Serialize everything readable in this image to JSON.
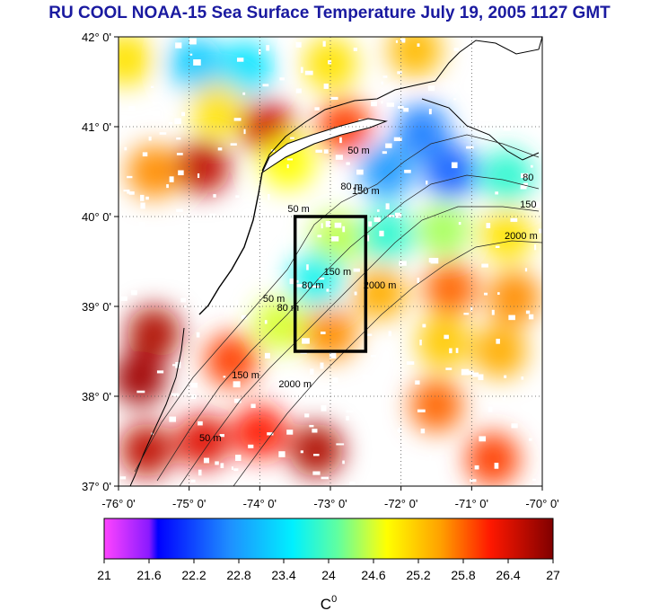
{
  "title": "RU COOL  NOAA-15 Sea Surface Temperature July 19, 2005 1127 GMT",
  "map": {
    "lon_range": [
      -76,
      -70
    ],
    "lat_range": [
      37,
      42
    ],
    "lat_ticks": [
      {
        "value": 42,
        "label": "42° 0'"
      },
      {
        "value": 41,
        "label": "41° 0'"
      },
      {
        "value": 40,
        "label": "40° 0'"
      },
      {
        "value": 39,
        "label": "39° 0'"
      },
      {
        "value": 38,
        "label": "38° 0'"
      },
      {
        "value": 37,
        "label": "37° 0'"
      }
    ],
    "lon_ticks": [
      {
        "value": -76,
        "label": "-76° 0'"
      },
      {
        "value": -75,
        "label": "-75° 0'"
      },
      {
        "value": -74,
        "label": "-74° 0'"
      },
      {
        "value": -73,
        "label": "-73° 0'"
      },
      {
        "value": -72,
        "label": "-72° 0'"
      },
      {
        "value": -71,
        "label": "-71° 0'"
      },
      {
        "value": -70,
        "label": "-70° 0'"
      }
    ],
    "study_box": {
      "lon": [
        -73.5,
        -72.5
      ],
      "lat": [
        38.5,
        40.0
      ]
    },
    "contour_labels": [
      {
        "text": "50 m",
        "lon": -72.6,
        "lat": 40.7
      },
      {
        "text": "50 m",
        "lon": -73.45,
        "lat": 40.05
      },
      {
        "text": "80 m",
        "lon": -72.7,
        "lat": 40.3
      },
      {
        "text": "150 m",
        "lon": -72.5,
        "lat": 40.25
      },
      {
        "text": "80",
        "lon": -70.2,
        "lat": 40.4
      },
      {
        "text": "150",
        "lon": -70.2,
        "lat": 40.1
      },
      {
        "text": "2000 m",
        "lon": -70.3,
        "lat": 39.75
      },
      {
        "text": "80 m",
        "lon": -73.25,
        "lat": 39.2
      },
      {
        "text": "150 m",
        "lon": -72.9,
        "lat": 39.35
      },
      {
        "text": "2000 m",
        "lon": -72.3,
        "lat": 39.2
      },
      {
        "text": "50 m",
        "lon": -73.8,
        "lat": 39.05
      },
      {
        "text": "80 m",
        "lon": -73.6,
        "lat": 38.95
      },
      {
        "text": "2000 m",
        "lon": -73.5,
        "lat": 38.1
      },
      {
        "text": "150 m",
        "lon": -74.2,
        "lat": 38.2
      },
      {
        "text": "50 m",
        "lon": -74.7,
        "lat": 37.5
      }
    ],
    "sst_patches": [
      {
        "lon": -75.9,
        "lat": 41.75,
        "temp": 25.0
      },
      {
        "lon": -74.9,
        "lat": 41.7,
        "temp": 23.2
      },
      {
        "lon": -74.2,
        "lat": 41.65,
        "temp": 23.4
      },
      {
        "lon": -73.0,
        "lat": 41.7,
        "temp": 25.0
      },
      {
        "lon": -71.8,
        "lat": 41.85,
        "temp": 25.3
      },
      {
        "lon": -74.6,
        "lat": 41.2,
        "temp": 25.0
      },
      {
        "lon": -73.9,
        "lat": 41.0,
        "temp": 26.5
      },
      {
        "lon": -72.8,
        "lat": 41.0,
        "temp": 26.0
      },
      {
        "lon": -71.7,
        "lat": 40.95,
        "temp": 22.6
      },
      {
        "lon": -73.6,
        "lat": 40.6,
        "temp": 24.8
      },
      {
        "lon": -72.2,
        "lat": 40.5,
        "temp": 22.8
      },
      {
        "lon": -71.3,
        "lat": 40.5,
        "temp": 22.4
      },
      {
        "lon": -70.5,
        "lat": 40.45,
        "temp": 23.8
      },
      {
        "lon": -74.8,
        "lat": 40.55,
        "temp": 26.6
      },
      {
        "lon": -75.5,
        "lat": 40.5,
        "temp": 25.6
      },
      {
        "lon": -72.9,
        "lat": 39.75,
        "temp": 24.5
      },
      {
        "lon": -72.2,
        "lat": 39.8,
        "temp": 23.8
      },
      {
        "lon": -71.4,
        "lat": 39.85,
        "temp": 24.4
      },
      {
        "lon": -70.5,
        "lat": 39.8,
        "temp": 25.0
      },
      {
        "lon": -73.2,
        "lat": 39.3,
        "temp": 23.6
      },
      {
        "lon": -72.3,
        "lat": 39.15,
        "temp": 25.4
      },
      {
        "lon": -71.3,
        "lat": 39.2,
        "temp": 25.8
      },
      {
        "lon": -70.4,
        "lat": 39.1,
        "temp": 25.6
      },
      {
        "lon": -73.7,
        "lat": 38.8,
        "temp": 24.6
      },
      {
        "lon": -73.0,
        "lat": 38.7,
        "temp": 25.6
      },
      {
        "lon": -71.4,
        "lat": 38.6,
        "temp": 25.2
      },
      {
        "lon": -70.6,
        "lat": 38.5,
        "temp": 25.4
      },
      {
        "lon": -75.5,
        "lat": 38.7,
        "temp": 26.7
      },
      {
        "lon": -75.7,
        "lat": 38.2,
        "temp": 26.8
      },
      {
        "lon": -74.4,
        "lat": 38.4,
        "temp": 26.0
      },
      {
        "lon": -75.6,
        "lat": 37.4,
        "temp": 26.6
      },
      {
        "lon": -74.8,
        "lat": 37.5,
        "temp": 26.4
      },
      {
        "lon": -74.0,
        "lat": 37.6,
        "temp": 26.2
      },
      {
        "lon": -73.2,
        "lat": 37.4,
        "temp": 26.7
      },
      {
        "lon": -70.7,
        "lat": 37.3,
        "temp": 26.0
      },
      {
        "lon": -71.5,
        "lat": 37.9,
        "temp": 25.8
      }
    ]
  },
  "colorbar": {
    "min": 21,
    "max": 27,
    "ticks": [
      "21",
      "21.6",
      "22.2",
      "22.8",
      "23.4",
      "24",
      "24.6",
      "25.2",
      "25.8",
      "26.4",
      "27"
    ],
    "unit_base": "C",
    "unit_sup": "0"
  },
  "colors": {
    "title": "#1a1aa0",
    "land_outline": "#000000",
    "box": "#000000"
  }
}
